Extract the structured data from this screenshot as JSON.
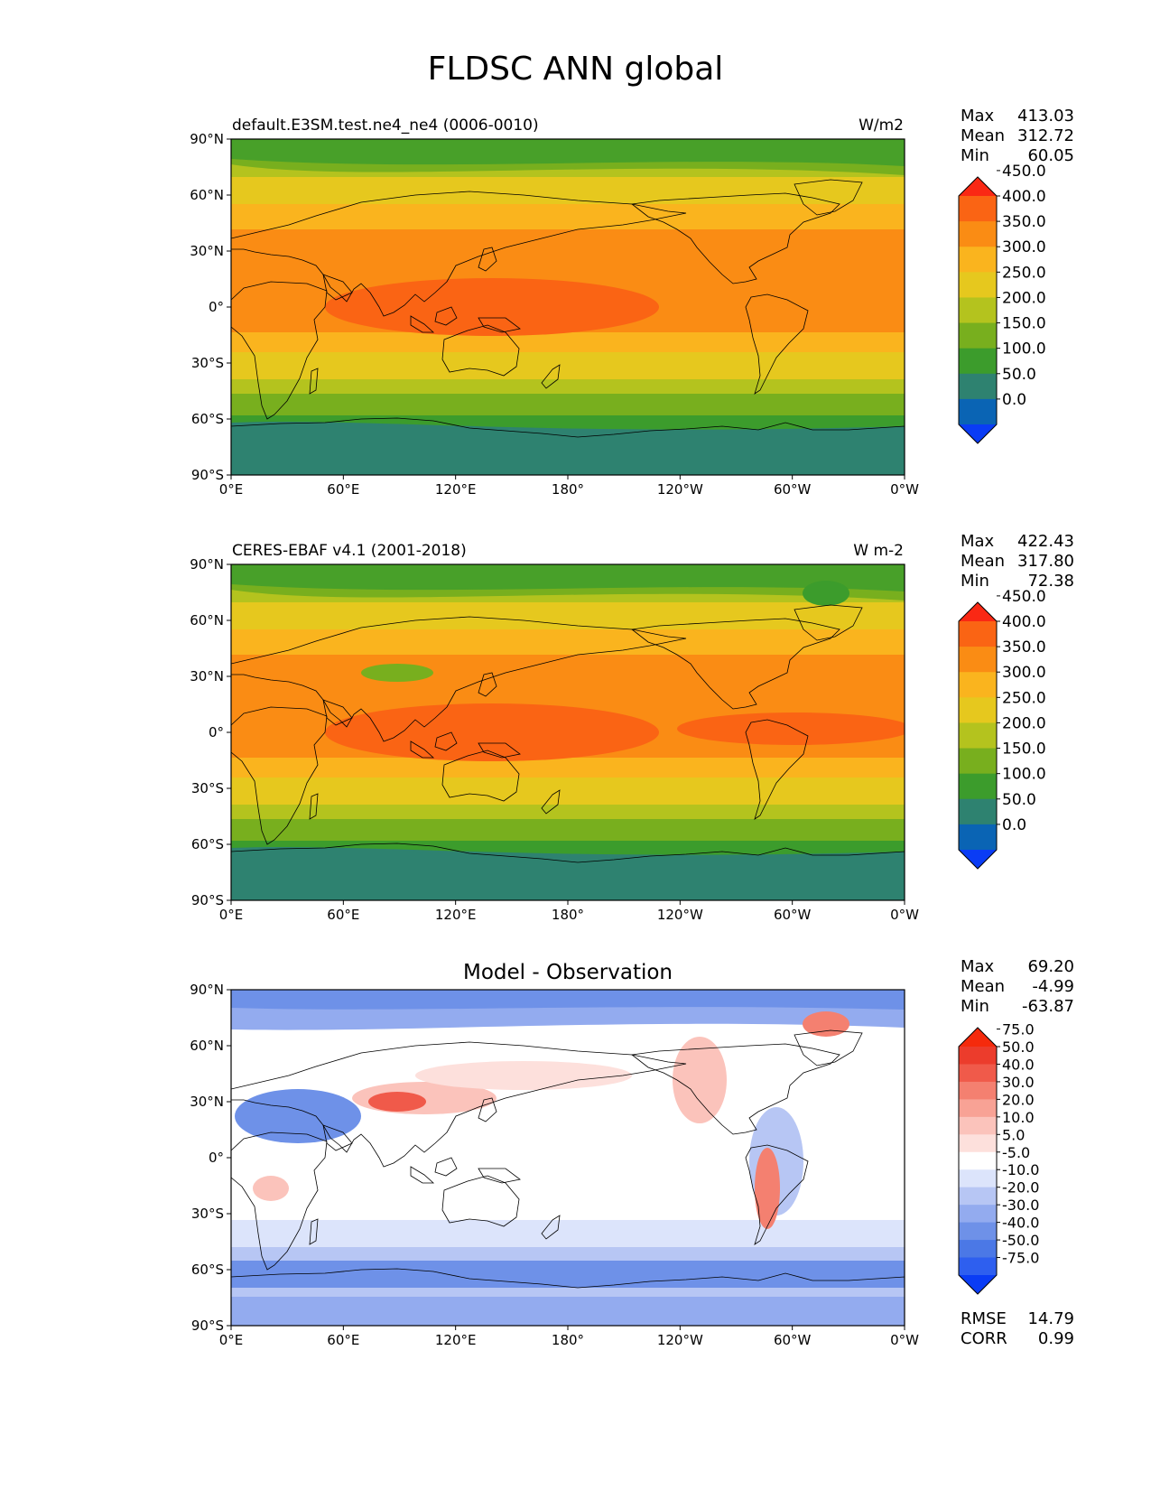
{
  "title": "FLDSC ANN global",
  "x_ticks": [
    "0°E",
    "60°E",
    "120°E",
    "180°",
    "120°W",
    "60°W",
    "0°W"
  ],
  "y_ticks": [
    "90°N",
    "60°N",
    "30°N",
    "0°",
    "30°S",
    "60°S",
    "90°S"
  ],
  "panels": [
    {
      "id": "test",
      "left_title": "default.E3SM.test.ne4_ne4 (0006-0010)",
      "right_title": "W/m2",
      "center_title": "",
      "stats": [
        {
          "label": "Max",
          "value": "413.03"
        },
        {
          "label": "Mean",
          "value": "312.72"
        },
        {
          "label": "Min",
          "value": "60.05"
        }
      ],
      "colorbar": {
        "colors": [
          "#0a3cf5",
          "#0a64b4",
          "#2e8270",
          "#3c9c2c",
          "#78af1e",
          "#b4c31e",
          "#e6c81e",
          "#fab41e",
          "#fa8c14",
          "#fa6414",
          "#fa2814"
        ],
        "labels": [
          "0.0",
          "50.0",
          "100.0",
          "150.0",
          "200.0",
          "250.0",
          "300.0",
          "350.0",
          "400.0",
          "450.0"
        ]
      }
    },
    {
      "id": "ref",
      "left_title": "CERES-EBAF v4.1 (2001-2018)",
      "right_title": "W m-2",
      "center_title": "",
      "stats": [
        {
          "label": "Max",
          "value": "422.43"
        },
        {
          "label": "Mean",
          "value": "317.80"
        },
        {
          "label": "Min",
          "value": "72.38"
        }
      ],
      "colorbar": {
        "colors": [
          "#0a3cf5",
          "#0a64b4",
          "#2e8270",
          "#3c9c2c",
          "#78af1e",
          "#b4c31e",
          "#e6c81e",
          "#fab41e",
          "#fa8c14",
          "#fa6414",
          "#fa2814"
        ],
        "labels": [
          "0.0",
          "50.0",
          "100.0",
          "150.0",
          "200.0",
          "250.0",
          "300.0",
          "350.0",
          "400.0",
          "450.0"
        ]
      }
    },
    {
      "id": "diff",
      "left_title": "",
      "right_title": "",
      "center_title": "Model - Observation",
      "stats": [
        {
          "label": "Max",
          "value": "69.20"
        },
        {
          "label": "Mean",
          "value": "-4.99"
        },
        {
          "label": "Min",
          "value": "-63.87"
        }
      ],
      "colorbar": {
        "colors": [
          "#0a3cf5",
          "#2e5fef",
          "#4b78e6",
          "#6e91e8",
          "#93abef",
          "#b7c6f4",
          "#dce4fb",
          "#ffffff",
          "#fde0dc",
          "#fbc3bb",
          "#f8a295",
          "#f48070",
          "#f05a4a",
          "#ec3c2c",
          "#f52a0c"
        ],
        "labels": [
          "-75.0",
          "-50.0",
          "-40.0",
          "-30.0",
          "-20.0",
          "-10.0",
          "-5.0",
          "5.0",
          "10.0",
          "20.0",
          "30.0",
          "40.0",
          "50.0",
          "75.0"
        ]
      },
      "metrics": [
        {
          "label": "RMSE",
          "value": "14.79"
        },
        {
          "label": "CORR",
          "value": "0.99"
        }
      ]
    }
  ]
}
